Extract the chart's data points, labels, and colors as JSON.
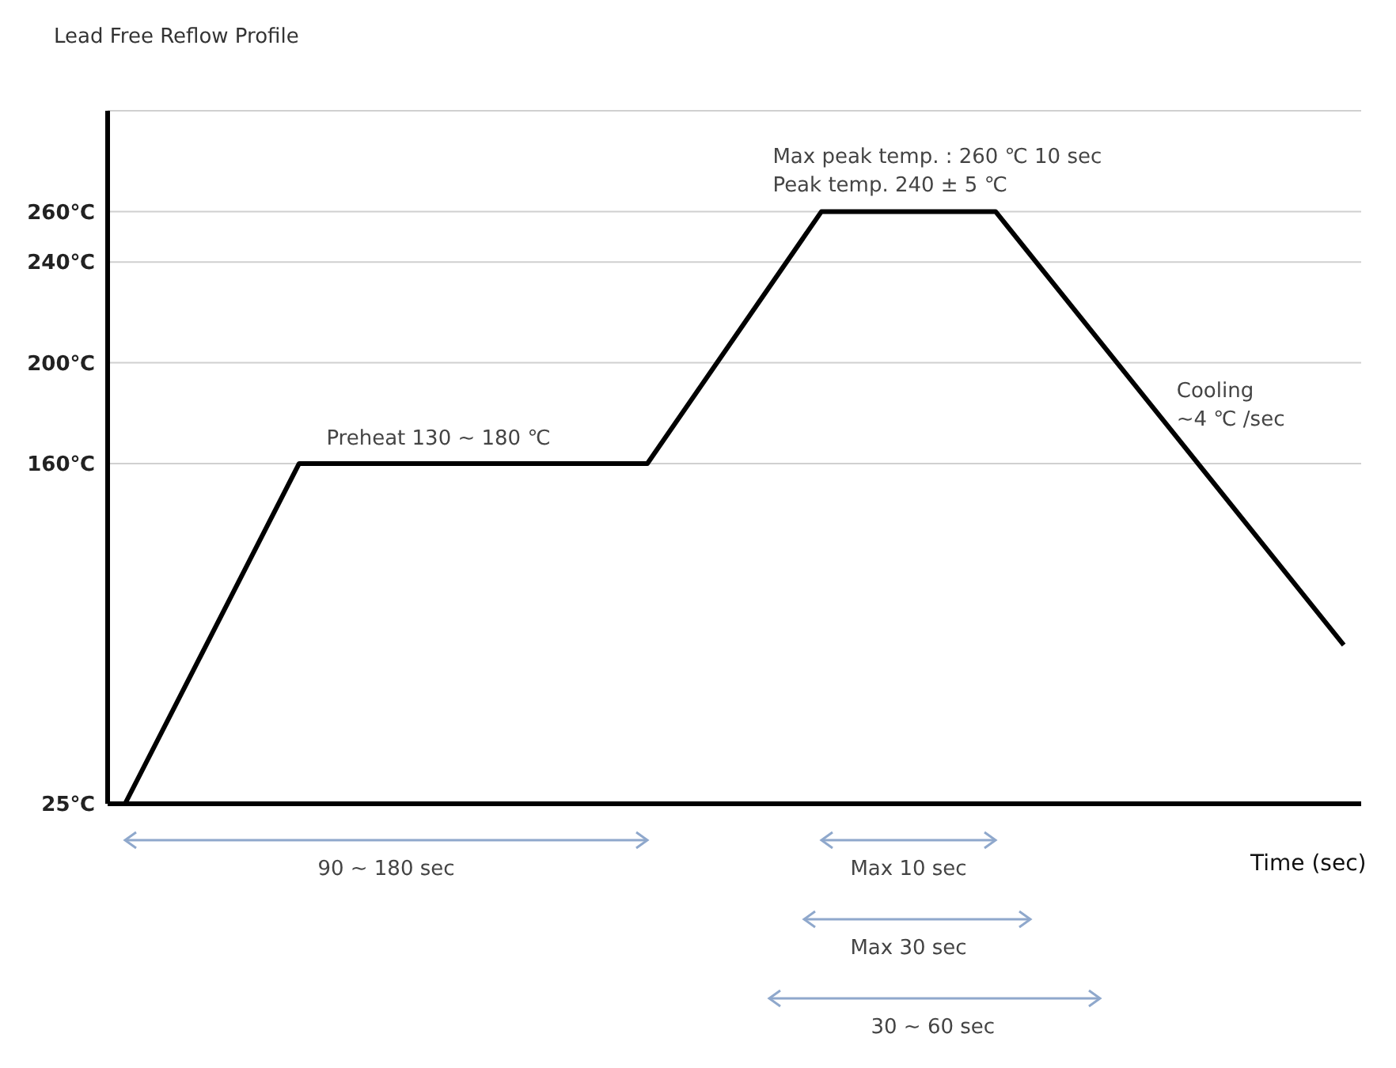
{
  "chart_data": {
    "type": "line",
    "title": "Lead Free Reflow Profile",
    "xlabel": "Time (sec)",
    "categories": [
      null,
      null,
      null,
      null,
      null,
      null,
      null,
      null,
      null,
      null,
      null,
      null,
      null,
      null,
      null,
      null,
      null,
      null,
      null,
      null,
      null,
      null,
      null,
      null,
      null,
      null,
      null,
      null,
      null,
      null,
      null,
      null,
      null,
      null,
      null,
      null
    ],
    "series": [
      {
        "color": "#000000",
        "values": [
          25,
          null,
          null,
          null,
          null,
          160,
          null,
          null,
          null,
          null,
          null,
          null,
          null,
          null,
          null,
          160,
          null,
          null,
          null,
          null,
          260,
          null,
          null,
          null,
          null,
          260,
          null,
          null,
          null,
          null,
          null,
          null,
          null,
          null,
          null,
          88
        ]
      }
    ],
    "ylim": [
      25,
      300
    ],
    "yticks": [
      {
        "value": 25,
        "label": "25℃"
      },
      {
        "value": 160,
        "label": "160℃"
      },
      {
        "value": 200,
        "label": "200℃"
      },
      {
        "value": 240,
        "label": "240℃"
      },
      {
        "value": 260,
        "label": "260℃"
      }
    ],
    "grid": "y",
    "marker": "none",
    "line_style": "solid",
    "tick_labels": "y",
    "annotations": [
      "Max peak temp. : 260 ℃ 10 sec",
      "Peak temp. 240 ± 5 ℃",
      "Preheat 130 ~ 180 ℃",
      "Cooling",
      "~4 ℃ /sec",
      "90 ~ 180 sec",
      "Max 10 sec",
      "Max 30 sec",
      "30 ~ 60 sec"
    ]
  }
}
